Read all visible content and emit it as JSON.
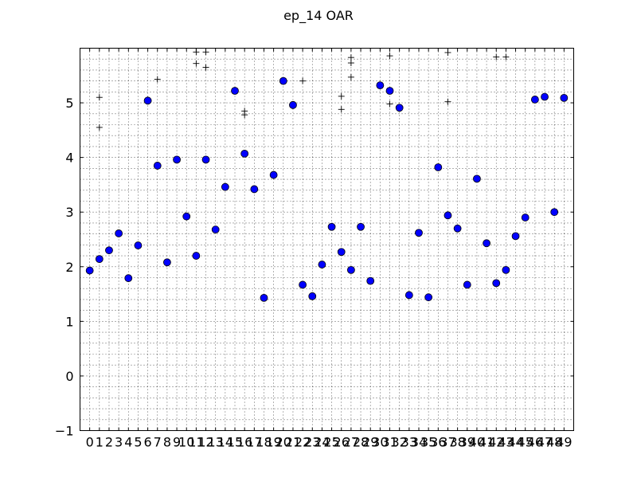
{
  "chart_data": {
    "type": "scatter",
    "title": "ep_14 OAR",
    "xlabel": "",
    "ylabel": "",
    "xlim": [
      -1,
      50
    ],
    "ylim": [
      -1,
      6
    ],
    "xticks": [
      0,
      1,
      2,
      3,
      4,
      5,
      6,
      7,
      8,
      9,
      10,
      11,
      12,
      13,
      14,
      15,
      16,
      17,
      18,
      19,
      20,
      21,
      22,
      23,
      24,
      25,
      26,
      27,
      28,
      29,
      30,
      31,
      32,
      33,
      34,
      35,
      36,
      37,
      38,
      39,
      40,
      41,
      42,
      43,
      44,
      45,
      46,
      47,
      48,
      49
    ],
    "yticks": [
      -1,
      0,
      1,
      2,
      3,
      4,
      5
    ],
    "ytick_labels": [
      "−1",
      "0",
      "1",
      "2",
      "3",
      "4",
      "5"
    ],
    "grid": true,
    "grid_style": "dotted",
    "series": [
      {
        "marker": "circle",
        "color": "#0000ff",
        "x": [
          0,
          1,
          2,
          3,
          4,
          5,
          6,
          7,
          8,
          9,
          10,
          11,
          12,
          13,
          14,
          15,
          16,
          17,
          18,
          19,
          20,
          21,
          22,
          23,
          24,
          25,
          26,
          27,
          28,
          29,
          30,
          31,
          32,
          33,
          34,
          35,
          36,
          37,
          38,
          39,
          40,
          41,
          42,
          43,
          44,
          45,
          46,
          47,
          48,
          49
        ],
        "y": [
          1.93,
          2.14,
          2.3,
          2.61,
          1.79,
          2.39,
          5.04,
          3.85,
          2.08,
          3.96,
          2.92,
          2.2,
          3.96,
          2.68,
          3.46,
          5.22,
          4.07,
          3.42,
          1.43,
          3.68,
          5.4,
          4.96,
          1.67,
          1.46,
          2.04,
          2.73,
          2.27,
          1.94,
          2.73,
          1.74,
          5.32,
          5.22,
          4.91,
          1.48,
          2.62,
          1.44,
          3.82,
          2.94,
          2.7,
          1.67,
          3.61,
          2.43,
          1.7,
          1.94,
          2.56,
          2.9,
          5.06,
          5.11,
          3.0,
          5.09
        ]
      },
      {
        "marker": "plus",
        "color": "#000000",
        "x": [
          1,
          1,
          7,
          11,
          11,
          12,
          12,
          16,
          16,
          22,
          27,
          27,
          27,
          26,
          26,
          31,
          31,
          37,
          37,
          42,
          43
        ],
        "y": [
          5.1,
          4.55,
          5.43,
          5.72,
          5.93,
          5.65,
          5.93,
          4.85,
          4.78,
          5.4,
          5.47,
          5.73,
          5.83,
          5.12,
          4.88,
          5.86,
          4.98,
          5.92,
          5.02,
          5.84,
          5.84
        ]
      }
    ]
  }
}
